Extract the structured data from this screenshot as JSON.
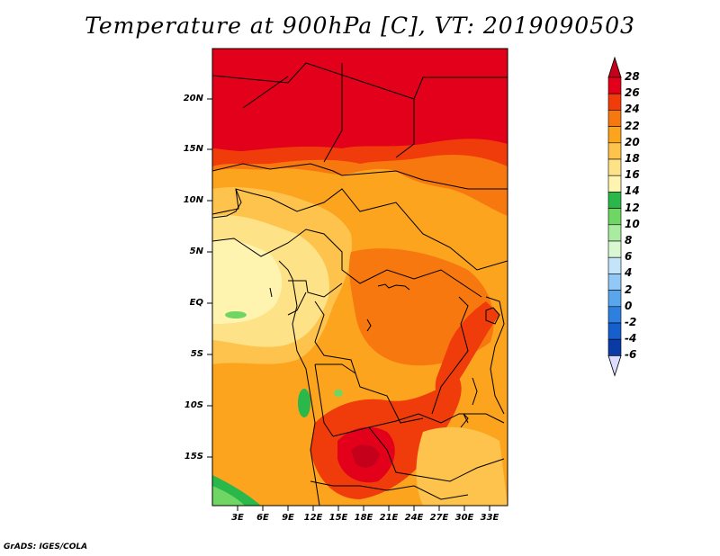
{
  "title": "Temperature at 900hPa [C], VT: 2019090503",
  "credit": "GrADS: IGES/COLA",
  "axes": {
    "lat_labels": [
      "20N",
      "15N",
      "10N",
      "5N",
      "EQ",
      "5S",
      "10S",
      "15S"
    ],
    "lon_labels": [
      "3E",
      "6E",
      "9E",
      "12E",
      "15E",
      "18E",
      "21E",
      "24E",
      "27E",
      "30E",
      "33E"
    ]
  },
  "colorbar": {
    "labels": [
      "28",
      "26",
      "24",
      "22",
      "20",
      "18",
      "16",
      "14",
      "12",
      "10",
      "8",
      "6",
      "4",
      "2",
      "0",
      "-2",
      "-4",
      "-6"
    ],
    "colors": [
      "#e2001a",
      "#f03c0a",
      "#f87810",
      "#fca41e",
      "#fdc34c",
      "#fee287",
      "#fff3b0",
      "#2ab84a",
      "#6fd664",
      "#a9eba0",
      "#d9f7d0",
      "#c4e4fa",
      "#92c8f5",
      "#5aa6ec",
      "#2d80e0",
      "#155fce",
      "#0a3aa6",
      "#081a6e"
    ],
    "top_color": "#c4001a",
    "bottom_color": "#dcdcff"
  }
}
